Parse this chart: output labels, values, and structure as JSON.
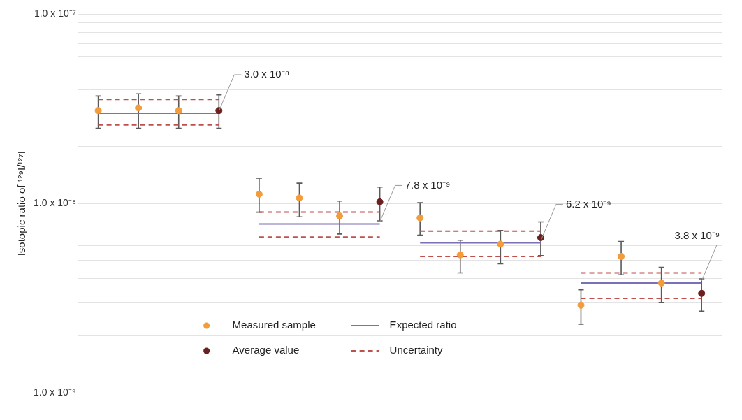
{
  "chart_data": {
    "type": "scatter",
    "ylabel": "Isotopic ratio of ¹²⁹I/¹²⁷I",
    "log": "y",
    "grid": "y",
    "legend": "bottom",
    "tick_labels": "y",
    "categories": [
      null,
      null,
      null,
      null,
      null,
      null,
      null,
      null,
      null,
      null,
      null,
      null,
      null,
      null,
      null,
      null
    ],
    "ylim": [
      1e-09,
      1e-07
    ],
    "yticks": [
      {
        "value": 1e-09,
        "label": "1.0 x 10⁻⁹"
      },
      {
        "value": 2e-09,
        "label": null
      },
      {
        "value": 3e-09,
        "label": null
      },
      {
        "value": 4e-09,
        "label": null
      },
      {
        "value": 5e-09,
        "label": null
      },
      {
        "value": 6e-09,
        "label": null
      },
      {
        "value": 7e-09,
        "label": null
      },
      {
        "value": 8e-09,
        "label": null
      },
      {
        "value": 9e-09,
        "label": null
      },
      {
        "value": 1e-08,
        "label": "1.0 x 10⁻⁸"
      },
      {
        "value": 2e-08,
        "label": null
      },
      {
        "value": 3e-08,
        "label": null
      },
      {
        "value": 4e-08,
        "label": null
      },
      {
        "value": 5e-08,
        "label": null
      },
      {
        "value": 6e-08,
        "label": null
      },
      {
        "value": 7e-08,
        "label": null
      },
      {
        "value": 8e-08,
        "label": null
      },
      {
        "value": 9e-08,
        "label": null
      },
      {
        "value": 1e-07,
        "label": "1.0 x 10⁻⁷"
      }
    ],
    "series": [
      {
        "name": "Measured sample",
        "marker": "circle",
        "color": "#f39c3c",
        "values": [
          3.1e-08,
          3.2e-08,
          3.1e-08,
          null,
          1.12e-08,
          1.07e-08,
          8.6e-09,
          null,
          8.4e-09,
          5.35e-09,
          6.1e-09,
          null,
          2.9e-09,
          5.25e-09,
          3.8e-09,
          null
        ],
        "errors": [
          [
            2.5e-08,
            3.7e-08
          ],
          [
            2.5e-08,
            3.8e-08
          ],
          [
            2.5e-08,
            3.7e-08
          ],
          null,
          [
            9e-09,
            1.36e-08
          ],
          [
            8.5e-09,
            1.28e-08
          ],
          [
            6.9e-09,
            1.03e-08
          ],
          null,
          [
            6.8e-09,
            1.01e-08
          ],
          [
            4.3e-09,
            6.4e-09
          ],
          [
            4.8e-09,
            7.2e-09
          ],
          null,
          [
            2.3e-09,
            3.5e-09
          ],
          [
            4.2e-09,
            6.3e-09
          ],
          [
            3e-09,
            4.6e-09
          ],
          null
        ]
      },
      {
        "name": "Average value",
        "marker": "circle",
        "color": "#6b1f1f",
        "values": [
          null,
          null,
          null,
          3.1e-08,
          null,
          null,
          null,
          1.02e-08,
          null,
          null,
          null,
          6.6e-09,
          null,
          null,
          null,
          3.35e-09
        ],
        "errors": [
          null,
          null,
          null,
          [
            2.5e-08,
            3.75e-08
          ],
          null,
          null,
          null,
          [
            8.1e-09,
            1.22e-08
          ],
          null,
          null,
          null,
          [
            5.3e-09,
            8e-09
          ],
          null,
          null,
          null,
          [
            2.7e-09,
            4e-09
          ]
        ]
      },
      {
        "name": "Expected ratio",
        "type": "line",
        "line_style": "solid",
        "color": "#7b6fb8",
        "values": [
          3e-08,
          3e-08,
          3e-08,
          3e-08,
          null,
          null,
          null,
          null,
          null,
          null,
          null,
          null,
          null,
          null,
          null,
          null
        ],
        "value_labels": [
          null,
          null,
          null,
          "3.0 x 10⁻⁸",
          null,
          null,
          null,
          null,
          null,
          null,
          null,
          null,
          null,
          null,
          null,
          null
        ]
      },
      {
        "type": "line",
        "line_style": "solid",
        "color": "#7b6fb8",
        "values": [
          null,
          null,
          null,
          null,
          7.8e-09,
          7.8e-09,
          7.8e-09,
          7.8e-09,
          null,
          null,
          null,
          null,
          null,
          null,
          null,
          null
        ],
        "value_labels": [
          null,
          null,
          null,
          null,
          null,
          null,
          null,
          "7.8 x 10⁻⁹",
          null,
          null,
          null,
          null,
          null,
          null,
          null,
          null
        ]
      },
      {
        "type": "line",
        "line_style": "solid",
        "color": "#7b6fb8",
        "values": [
          null,
          null,
          null,
          null,
          null,
          null,
          null,
          null,
          6.2e-09,
          6.2e-09,
          6.2e-09,
          6.2e-09,
          null,
          null,
          null,
          null
        ],
        "value_labels": [
          null,
          null,
          null,
          null,
          null,
          null,
          null,
          null,
          null,
          null,
          null,
          "6.2 x 10⁻⁹",
          null,
          null,
          null,
          null
        ]
      },
      {
        "type": "line",
        "line_style": "solid",
        "color": "#7b6fb8",
        "values": [
          null,
          null,
          null,
          null,
          null,
          null,
          null,
          null,
          null,
          null,
          null,
          null,
          3.8e-09,
          3.8e-09,
          3.8e-09,
          3.8e-09
        ],
        "value_labels": [
          null,
          null,
          null,
          null,
          null,
          null,
          null,
          null,
          null,
          null,
          null,
          null,
          null,
          null,
          null,
          "3.8 x 10⁻⁹"
        ]
      },
      {
        "name": "Uncertainty",
        "type": "line",
        "line_style": "dashed",
        "color": "#c0504d",
        "values": [
          3.55e-08,
          3.55e-08,
          3.55e-08,
          3.55e-08,
          null,
          null,
          null,
          null,
          null,
          null,
          null,
          null,
          null,
          null,
          null,
          null
        ]
      },
      {
        "type": "line",
        "line_style": "dashed",
        "color": "#c0504d",
        "values": [
          2.6e-08,
          2.6e-08,
          2.6e-08,
          2.6e-08,
          null,
          null,
          null,
          null,
          null,
          null,
          null,
          null,
          null,
          null,
          null,
          null
        ]
      },
      {
        "type": "line",
        "line_style": "dashed",
        "color": "#c0504d",
        "values": [
          null,
          null,
          null,
          null,
          9e-09,
          9e-09,
          9e-09,
          9e-09,
          null,
          null,
          null,
          null,
          null,
          null,
          null,
          null
        ]
      },
      {
        "type": "line",
        "line_style": "dashed",
        "color": "#c0504d",
        "values": [
          null,
          null,
          null,
          null,
          6.65e-09,
          6.65e-09,
          6.65e-09,
          6.65e-09,
          null,
          null,
          null,
          null,
          null,
          null,
          null,
          null
        ]
      },
      {
        "type": "line",
        "line_style": "dashed",
        "color": "#c0504d",
        "values": [
          null,
          null,
          null,
          null,
          null,
          null,
          null,
          null,
          7.15e-09,
          7.15e-09,
          7.15e-09,
          7.15e-09,
          null,
          null,
          null,
          null
        ]
      },
      {
        "type": "line",
        "line_style": "dashed",
        "color": "#c0504d",
        "values": [
          null,
          null,
          null,
          null,
          null,
          null,
          null,
          null,
          5.25e-09,
          5.25e-09,
          5.25e-09,
          5.25e-09,
          null,
          null,
          null,
          null
        ]
      },
      {
        "type": "line",
        "line_style": "dashed",
        "color": "#c0504d",
        "values": [
          null,
          null,
          null,
          null,
          null,
          null,
          null,
          null,
          null,
          null,
          null,
          null,
          4.3e-09,
          4.3e-09,
          4.3e-09,
          4.3e-09
        ]
      },
      {
        "type": "line",
        "line_style": "dashed",
        "color": "#c0504d",
        "values": [
          null,
          null,
          null,
          null,
          null,
          null,
          null,
          null,
          null,
          null,
          null,
          null,
          3.15e-09,
          3.15e-09,
          3.15e-09,
          3.15e-09
        ]
      }
    ]
  }
}
